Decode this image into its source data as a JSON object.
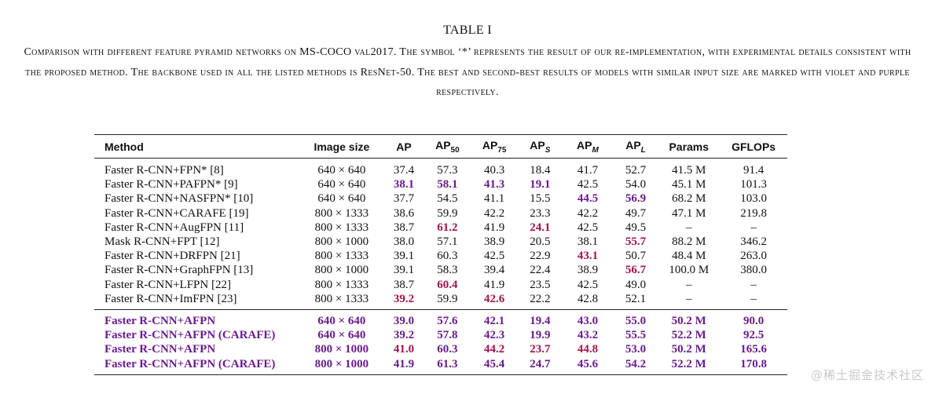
{
  "title": "TABLE I",
  "caption": {
    "part1": "Comparison with different feature pyramid networks on ",
    "dataset": "MS-COCO",
    "part2": " val2017. The symbol ‘*’ represents the result of our re-implementation, with experimental details consistent with the proposed method. The backbone used in all the listed methods is ResNet-50. The best and second-best results of models with similar input size are marked with violet and purple respectively."
  },
  "colors": {
    "best": "#a0134d",
    "second": "#6a1b8f",
    "text": "#111111"
  },
  "table": {
    "headers": {
      "method": "Method",
      "image_size": "Image size",
      "ap": "AP",
      "ap50_main": "AP",
      "ap50_sub": "50",
      "ap75_main": "AP",
      "ap75_sub": "75",
      "aps_main": "AP",
      "aps_sub": "S",
      "apm_main": "AP",
      "apm_sub": "M",
      "apl_main": "AP",
      "apl_sub": "L",
      "params": "Params",
      "gflops": "GFLOPs"
    },
    "groups": [
      [
        {
          "method": "Faster R-CNN+FPN* [8]",
          "size": "640 × 640",
          "ap": "37.4",
          "ap50": "57.3",
          "ap75": "40.3",
          "aps": "18.4",
          "apm": "41.7",
          "apl": "52.7",
          "params": "41.5 M",
          "gflops": "91.4",
          "marks": {}
        },
        {
          "method": "Faster R-CNN+PAFPN* [9]",
          "size": "640 × 640",
          "ap": "38.1",
          "ap50": "58.1",
          "ap75": "41.3",
          "aps": "19.1",
          "apm": "42.5",
          "apl": "54.0",
          "params": "45.1 M",
          "gflops": "101.3",
          "marks": {
            "ap": "second",
            "ap50": "second",
            "ap75": "second",
            "aps": "second"
          }
        },
        {
          "method": "Faster R-CNN+NASFPN* [10]",
          "size": "640 × 640",
          "ap": "37.7",
          "ap50": "54.5",
          "ap75": "41.1",
          "aps": "15.5",
          "apm": "44.5",
          "apl": "56.9",
          "params": "68.2 M",
          "gflops": "103.0",
          "marks": {
            "apm": "second",
            "apl": "second"
          }
        },
        {
          "method": "Faster R-CNN+CARAFE [19]",
          "size": "800 × 1333",
          "ap": "38.6",
          "ap50": "59.9",
          "ap75": "42.2",
          "aps": "23.3",
          "apm": "42.2",
          "apl": "49.7",
          "params": "47.1 M",
          "gflops": "219.8",
          "marks": {}
        },
        {
          "method": "Faster R-CNN+AugFPN [11]",
          "size": "800 × 1333",
          "ap": "38.7",
          "ap50": "61.2",
          "ap75": "41.9",
          "aps": "24.1",
          "apm": "42.5",
          "apl": "49.5",
          "params": "–",
          "gflops": "–",
          "marks": {
            "ap50": "best",
            "aps": "best"
          }
        },
        {
          "method": "Mask R-CNN+FPT [12]",
          "size": "800 × 1000",
          "ap": "38.0",
          "ap50": "57.1",
          "ap75": "38.9",
          "aps": "20.5",
          "apm": "38.1",
          "apl": "55.7",
          "params": "88.2 M",
          "gflops": "346.2",
          "marks": {
            "apl": "best"
          }
        },
        {
          "method": "Faster R-CNN+DRFPN [21]",
          "size": "800 × 1333",
          "ap": "39.1",
          "ap50": "60.3",
          "ap75": "42.5",
          "aps": "22.9",
          "apm": "43.1",
          "apl": "50.7",
          "params": "48.4 M",
          "gflops": "263.0",
          "marks": {
            "apm": "best"
          }
        },
        {
          "method": "Faster R-CNN+GraphFPN [13]",
          "size": "800 × 1000",
          "ap": "39.1",
          "ap50": "58.3",
          "ap75": "39.4",
          "aps": "22.4",
          "apm": "38.9",
          "apl": "56.7",
          "params": "100.0 M",
          "gflops": "380.0",
          "marks": {
            "apl": "best"
          }
        },
        {
          "method": "Faster R-CNN+LFPN [22]",
          "size": "800 × 1333",
          "ap": "38.7",
          "ap50": "60.4",
          "ap75": "41.9",
          "aps": "23.5",
          "apm": "42.5",
          "apl": "49.0",
          "params": "–",
          "gflops": "–",
          "marks": {
            "ap50": "best"
          }
        },
        {
          "method": "Faster R-CNN+ImFPN [23]",
          "size": "800 × 1333",
          "ap": "39.2",
          "ap50": "59.9",
          "ap75": "42.6",
          "aps": "22.2",
          "apm": "42.8",
          "apl": "52.1",
          "params": "–",
          "gflops": "–",
          "marks": {
            "ap": "best",
            "ap75": "best"
          }
        }
      ],
      [
        {
          "method": "Faster R-CNN+AFPN",
          "size": "640 × 640",
          "ap": "39.0",
          "ap50": "57.6",
          "ap75": "42.1",
          "aps": "19.4",
          "apm": "43.0",
          "apl": "55.0",
          "params": "50.2 M",
          "gflops": "90.0",
          "marks": {
            "ap": "second",
            "ap50": "second",
            "ap75": "second",
            "aps": "second",
            "apm": "second",
            "apl": "second"
          }
        },
        {
          "method": "Faster R-CNN+AFPN (CARAFE)",
          "size": "640 × 640",
          "ap": "39.2",
          "ap50": "57.8",
          "ap75": "42.3",
          "aps": "19.9",
          "apm": "43.2",
          "apl": "55.5",
          "params": "52.2 M",
          "gflops": "92.5",
          "marks": {}
        },
        {
          "method": "Faster R-CNN+AFPN",
          "size": "800 × 1000",
          "ap": "41.0",
          "ap50": "60.3",
          "ap75": "44.2",
          "aps": "23.7",
          "apm": "44.8",
          "apl": "53.0",
          "params": "50.2 M",
          "gflops": "165.6",
          "marks": {
            "ap": "best",
            "ap75": "best",
            "aps": "best",
            "apm": "best"
          }
        },
        {
          "method": "Faster R-CNN+AFPN (CARAFE)",
          "size": "800 × 1000",
          "ap": "41.9",
          "ap50": "61.3",
          "ap75": "45.4",
          "aps": "24.7",
          "apm": "45.6",
          "apl": "54.2",
          "params": "52.2 M",
          "gflops": "170.8",
          "marks": {}
        }
      ]
    ]
  },
  "watermark": "@稀土掘金技术社区"
}
